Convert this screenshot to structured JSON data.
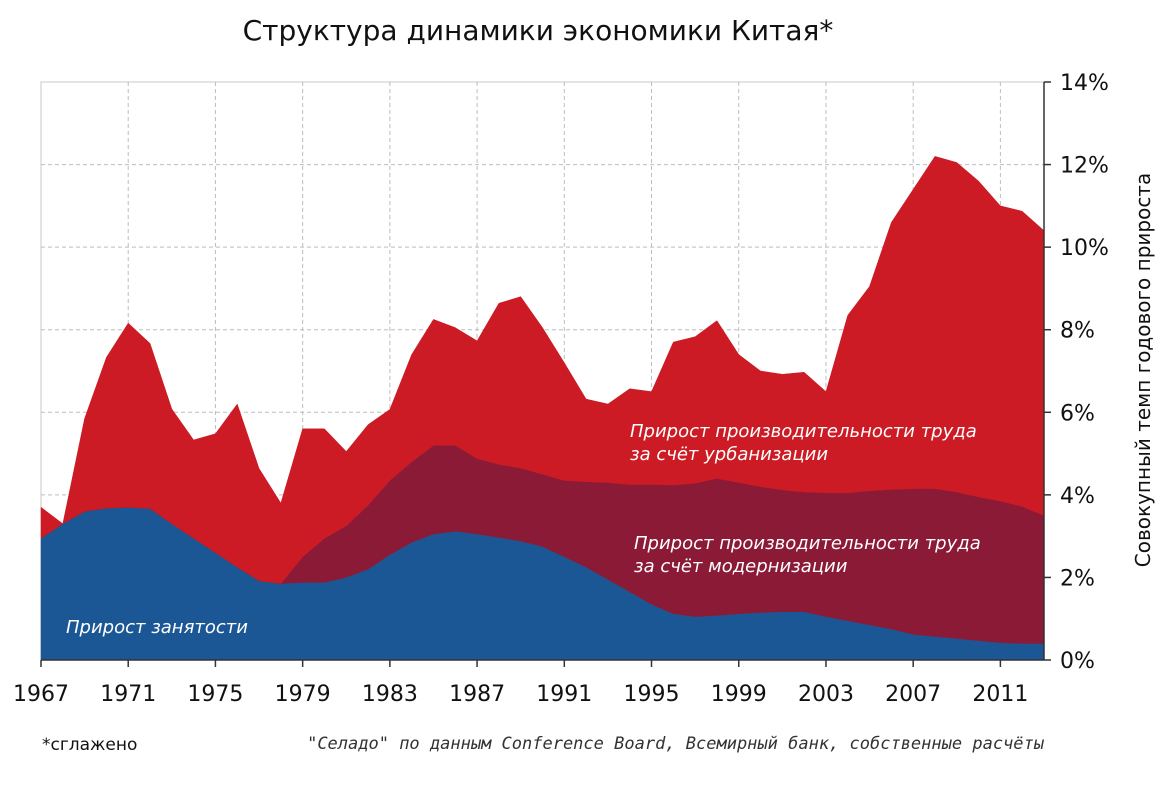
{
  "chart_data": {
    "type": "area",
    "stacked": true,
    "title": "Структура динамики экономики Китая*",
    "ylabel": "Совокупный темп годового прироста",
    "ylim": [
      0,
      14
    ],
    "yticks": [
      0,
      2,
      4,
      6,
      8,
      10,
      12,
      14
    ],
    "ytick_labels": [
      "0%",
      "2%",
      "4%",
      "6%",
      "8%",
      "10%",
      "12%",
      "14%"
    ],
    "y_axis_side": "right",
    "xlim": [
      1967,
      2013
    ],
    "xticks": [
      1967,
      1971,
      1975,
      1979,
      1983,
      1987,
      1991,
      1995,
      1999,
      2003,
      2007,
      2011
    ],
    "xtick_labels": [
      "1967",
      "1971",
      "1975",
      "1979",
      "1983",
      "1987",
      "1991",
      "1995",
      "1999",
      "2003",
      "2007",
      "2011"
    ],
    "grid": true,
    "x": [
      1967,
      1968,
      1969,
      1970,
      1971,
      1972,
      1973,
      1974,
      1975,
      1976,
      1977,
      1978,
      1979,
      1980,
      1981,
      1982,
      1983,
      1984,
      1985,
      1986,
      1987,
      1988,
      1989,
      1990,
      1991,
      1992,
      1993,
      1994,
      1995,
      1996,
      1997,
      1998,
      1999,
      2000,
      2001,
      2002,
      2003,
      2004,
      2005,
      2006,
      2007,
      2008,
      2009,
      2010,
      2011,
      2012,
      2013
    ],
    "series": [
      {
        "label": "Прирост занятости",
        "color": "#1b5794",
        "values": [
          2.95,
          3.3,
          3.6,
          3.68,
          3.7,
          3.67,
          3.3,
          2.95,
          2.6,
          2.25,
          1.92,
          1.85,
          1.88,
          1.88,
          2.0,
          2.2,
          2.55,
          2.85,
          3.05,
          3.12,
          3.05,
          2.97,
          2.88,
          2.75,
          2.5,
          2.25,
          1.95,
          1.65,
          1.35,
          1.12,
          1.05,
          1.08,
          1.12,
          1.15,
          1.17,
          1.17,
          1.05,
          0.95,
          0.85,
          0.75,
          0.62,
          0.57,
          0.52,
          0.47,
          0.42,
          0.4,
          0.4
        ]
      },
      {
        "label": "Прирост производительности труда за счёт модернизации",
        "color": "#8b1a36",
        "values": [
          0.0,
          0.0,
          0.0,
          0.0,
          0.0,
          0.0,
          0.0,
          0.0,
          0.0,
          0.0,
          0.0,
          0.0,
          0.62,
          1.07,
          1.25,
          1.55,
          1.8,
          1.95,
          2.15,
          2.08,
          1.83,
          1.77,
          1.77,
          1.75,
          1.85,
          2.07,
          2.35,
          2.6,
          2.9,
          3.12,
          3.23,
          3.32,
          3.18,
          3.05,
          2.95,
          2.9,
          3.0,
          3.1,
          3.25,
          3.38,
          3.53,
          3.58,
          3.55,
          3.48,
          3.43,
          3.32,
          3.1
        ]
      },
      {
        "label": "Прирост производительности труда за счёт урбанизации",
        "color": "#cc1b24",
        "values": [
          0.75,
          0.0,
          2.25,
          3.65,
          4.46,
          4.0,
          2.78,
          2.38,
          2.88,
          3.95,
          2.72,
          1.95,
          3.1,
          2.65,
          1.8,
          1.95,
          1.72,
          2.6,
          3.05,
          2.85,
          2.85,
          3.9,
          4.15,
          3.55,
          2.85,
          2.0,
          1.9,
          2.32,
          2.25,
          3.46,
          3.55,
          3.82,
          3.1,
          2.8,
          2.8,
          2.9,
          2.45,
          4.3,
          4.95,
          6.47,
          7.25,
          8.05,
          7.98,
          7.65,
          7.15,
          7.15,
          6.9
        ]
      }
    ],
    "annotations": [
      {
        "text": "Прирост занятости",
        "series": 0
      },
      {
        "text": [
          "Прирост производительности труда",
          "за счёт модернизации"
        ],
        "series": 1
      },
      {
        "text": [
          "Прирост производительности труда",
          "за счёт урбанизации"
        ],
        "series": 2
      }
    ]
  },
  "footnote": "*сглажено",
  "source": "\"Селадо\" по данным Conference Board, Всемирный банк, собственные расчёты"
}
